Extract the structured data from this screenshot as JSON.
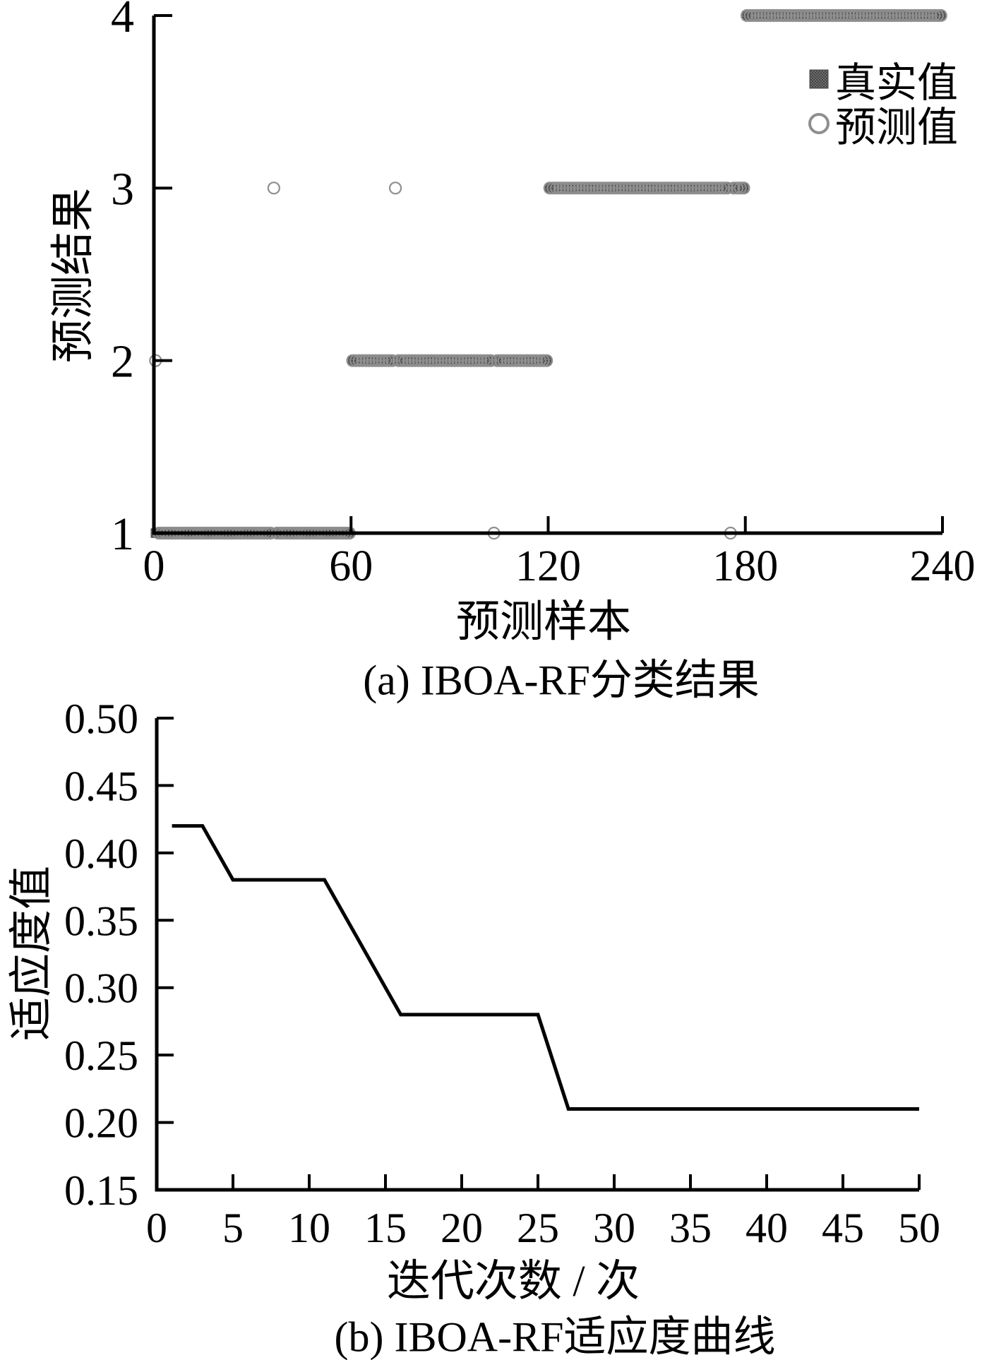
{
  "page": {
    "background": "#ffffff"
  },
  "colors": {
    "axis": "#000000",
    "text": "#000000",
    "curve": "#000000",
    "true_marker_dark": "#454545",
    "true_marker_light": "#6e6e6e",
    "predicted_marker": "#8f8f8f"
  },
  "chart_data": [
    {
      "type": "scatter",
      "title": "(a) IBOA-RF分类结果",
      "xlabel": "预测样本",
      "ylabel": "预测结果",
      "xlim": [
        0,
        240
      ],
      "ylim": [
        1,
        4
      ],
      "grid": false,
      "x_ticks": [
        0,
        60,
        120,
        180,
        240
      ],
      "x_tick_labels": [
        "0",
        "60",
        "120",
        "180",
        "240"
      ],
      "y_ticks": [
        1,
        2,
        3,
        4
      ],
      "y_tick_labels": [
        "1",
        "2",
        "3",
        "4"
      ],
      "legend_position": "top-right-inside",
      "legend": [
        {
          "label": "真实值",
          "marker": "filled-square"
        },
        {
          "label": "预测值",
          "marker": "open-circle"
        }
      ],
      "series": [
        {
          "name": "真实值",
          "role": "true-values",
          "marker": "filled-square",
          "segments": [
            {
              "x_start": 0,
              "x_end": 60,
              "y": 1
            },
            {
              "x_start": 60,
              "x_end": 120,
              "y": 2
            },
            {
              "x_start": 120,
              "x_end": 180,
              "y": 3
            },
            {
              "x_start": 180,
              "x_end": 240,
              "y": 4
            }
          ]
        },
        {
          "name": "预测值",
          "role": "predicted-values",
          "marker": "open-circle",
          "segments": [
            {
              "x_start": 0,
              "x_end": 60,
              "y": 1
            },
            {
              "x_start": 60,
              "x_end": 120,
              "y": 2
            },
            {
              "x_start": 120,
              "x_end": 180,
              "y": 3
            },
            {
              "x_start": 180,
              "x_end": 240,
              "y": 4
            }
          ],
          "outliers": [
            {
              "x": 0,
              "y": 2
            },
            {
              "x": 36,
              "y": 3
            },
            {
              "x": 73,
              "y": 3
            },
            {
              "x": 103,
              "y": 1
            },
            {
              "x": 175,
              "y": 1
            }
          ]
        }
      ]
    },
    {
      "type": "line",
      "title": "(b) IBOA-RF适应度曲线",
      "xlabel": "迭代次数 / 次",
      "ylabel": "适应度值",
      "xlim": [
        0,
        50
      ],
      "ylim": [
        0.15,
        0.5
      ],
      "grid": false,
      "x_ticks": [
        0,
        5,
        10,
        15,
        20,
        25,
        30,
        35,
        40,
        45,
        50
      ],
      "x_tick_labels": [
        "0",
        "5",
        "10",
        "15",
        "20",
        "25",
        "30",
        "35",
        "40",
        "45",
        "50"
      ],
      "y_ticks": [
        0.15,
        0.2,
        0.25,
        0.3,
        0.35,
        0.4,
        0.45,
        0.5
      ],
      "y_tick_labels": [
        "0.15",
        "0.20",
        "0.25",
        "0.30",
        "0.35",
        "0.40",
        "0.45",
        "0.50"
      ],
      "series": [
        {
          "name": "适应度值",
          "points": [
            [
              1,
              0.42
            ],
            [
              3,
              0.42
            ],
            [
              5,
              0.38
            ],
            [
              11,
              0.38
            ],
            [
              16,
              0.28
            ],
            [
              25,
              0.28
            ],
            [
              27,
              0.21
            ],
            [
              50,
              0.21
            ]
          ]
        }
      ]
    }
  ]
}
